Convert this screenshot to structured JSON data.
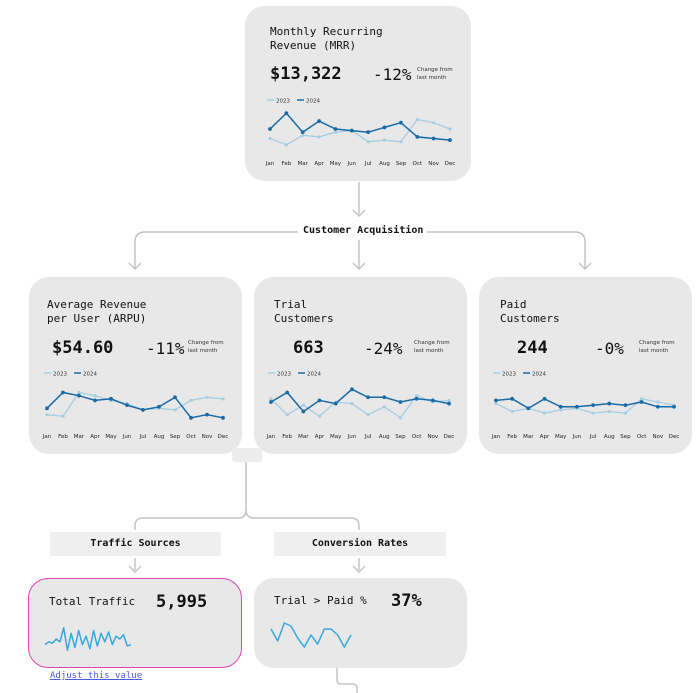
{
  "months": [
    "Jan",
    "Feb",
    "Mar",
    "Apr",
    "May",
    "Jun",
    "Jul",
    "Aug",
    "Sep",
    "Oct",
    "Nov",
    "Dec"
  ],
  "legend": {
    "y2023": "2023",
    "y2024": "2024"
  },
  "colors": {
    "y2023": "#a6cde2",
    "y2024": "#1a6aa5",
    "traffic": "#35a8e0",
    "highlight": "#e23fb3",
    "link": "#4a5bdc"
  },
  "change_note": "Change from last month",
  "mrr": {
    "title": "Monthly Recurring\nRevenue (MRR)",
    "value": "$13,322",
    "change": "-12%",
    "chart_data": {
      "type": "line",
      "x": [
        "Jan",
        "Feb",
        "Mar",
        "Apr",
        "May",
        "Jun",
        "Jul",
        "Aug",
        "Sep",
        "Oct",
        "Nov",
        "Dec"
      ],
      "series": [
        {
          "name": "2023",
          "values": [
            3,
            1,
            4,
            3.5,
            5,
            5.5,
            2,
            2.5,
            2,
            9,
            8,
            6
          ]
        },
        {
          "name": "2024",
          "values": [
            6,
            11,
            5,
            8.5,
            6,
            5.5,
            5,
            6.5,
            8,
            3.5,
            3,
            2.5
          ]
        }
      ]
    }
  },
  "section_customer_acquisition": "Customer Acquisition",
  "arpu": {
    "title": "Average Revenue\nper User (ARPU)",
    "value": "$54.60",
    "change": "-11%",
    "chart_data": {
      "type": "line",
      "x": [
        "Jan",
        "Feb",
        "Mar",
        "Apr",
        "May",
        "Jun",
        "Jul",
        "Aug",
        "Sep",
        "Oct",
        "Nov",
        "Dec"
      ],
      "series": [
        {
          "name": "2023",
          "values": [
            2,
            1.5,
            9,
            8,
            6.5,
            5.5,
            3.5,
            4,
            3.5,
            6.5,
            7.5,
            7
          ]
        },
        {
          "name": "2024",
          "values": [
            4,
            9,
            8,
            6.5,
            7,
            5,
            3.5,
            4.5,
            7.5,
            1,
            2,
            1
          ]
        }
      ]
    }
  },
  "trial": {
    "title": "Trial\nCustomers",
    "value": "663",
    "change": "-24%",
    "chart_data": {
      "type": "line",
      "x": [
        "Jan",
        "Feb",
        "Mar",
        "Apr",
        "May",
        "Jun",
        "Jul",
        "Aug",
        "Sep",
        "Oct",
        "Nov",
        "Dec"
      ],
      "series": [
        {
          "name": "2023",
          "values": [
            7,
            2,
            5,
            1.5,
            6,
            5.5,
            2,
            4.5,
            1,
            8,
            6,
            6.5
          ]
        },
        {
          "name": "2024",
          "values": [
            6,
            9,
            3,
            6.5,
            5.5,
            10,
            7.5,
            7.5,
            6,
            7,
            6.5,
            5.5
          ]
        }
      ]
    }
  },
  "paid": {
    "title": "Paid\nCustomers",
    "value": "244",
    "change": "-0%",
    "chart_data": {
      "type": "line",
      "x": [
        "Jan",
        "Feb",
        "Mar",
        "Apr",
        "May",
        "Jun",
        "Jul",
        "Aug",
        "Sep",
        "Oct",
        "Nov",
        "Dec"
      ],
      "series": [
        {
          "name": "2023",
          "values": [
            5.5,
            3,
            4,
            2.5,
            3.5,
            4,
            2.5,
            3,
            2.5,
            7,
            6,
            5
          ]
        },
        {
          "name": "2024",
          "values": [
            6.5,
            7,
            4,
            7,
            4.5,
            4.5,
            5,
            5.5,
            5,
            6,
            4.5,
            4.5
          ]
        }
      ]
    }
  },
  "traffic_sources_label": "Traffic Sources",
  "conversion_rates_label": "Conversion Rates",
  "total_traffic": {
    "title": "Total Traffic",
    "value": "5,995",
    "chart_data": {
      "type": "line",
      "values": [
        3,
        4,
        3.5,
        5,
        4,
        9,
        1,
        7,
        2,
        8,
        3,
        6,
        1.5,
        8,
        2.5,
        7,
        4,
        7.5,
        3,
        6,
        5,
        6.5,
        2.5,
        3
      ]
    }
  },
  "trial_to_paid": {
    "title": "Trial > Paid %",
    "value": "37%",
    "chart_data": {
      "type": "line",
      "values": [
        7,
        3,
        9,
        8,
        4,
        1,
        5,
        2,
        7,
        7,
        5,
        1,
        5
      ]
    }
  },
  "adjust_link": "Adjust this value "
}
